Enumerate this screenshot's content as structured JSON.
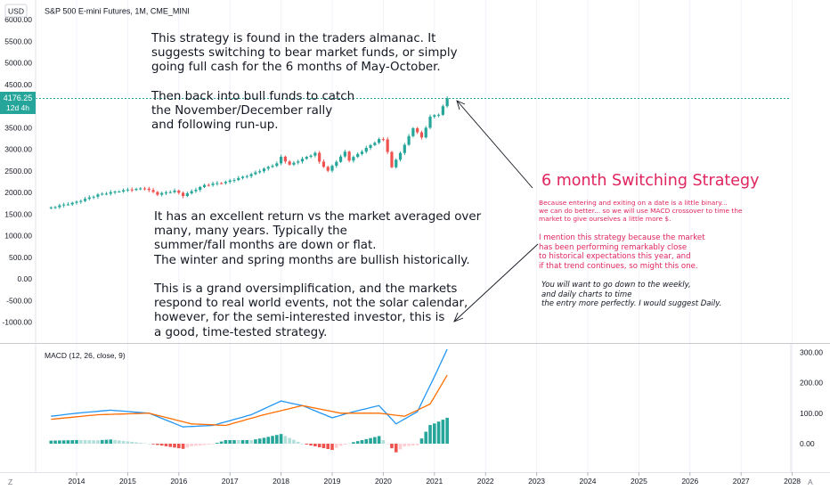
{
  "header": {
    "currency": "USD",
    "symbol_line": "S&P 500 E-mini Futures, 1M, CME_MINI"
  },
  "colors": {
    "up": "#26a69a",
    "down": "#ef5350",
    "hist_up_strong": "#26a69a",
    "hist_up_weak": "#b2dfdb",
    "hist_down_strong": "#ef5350",
    "hist_down_weak": "#ffcdd2",
    "macd_line": "#2196f3",
    "signal_line": "#ff6d00",
    "annotation_pink": "#e0245e"
  },
  "price_axis": {
    "labels": [
      "6000.00",
      "5500.00",
      "5000.00",
      "4500.00",
      "3500.00",
      "3000.00",
      "2500.00",
      "2000.00",
      "1500.00",
      "1000.00",
      "500.00",
      "0.00",
      "-500.00",
      "-1000.00"
    ],
    "current_price": "4176.25",
    "countdown": "12d 4h"
  },
  "time_axis": {
    "labels": [
      "2014",
      "2015",
      "2016",
      "2017",
      "2018",
      "2019",
      "2020",
      "2021",
      "2022",
      "2023",
      "2024",
      "2025",
      "2026",
      "2027",
      "2028"
    ]
  },
  "macd_panel": {
    "label": "MACD (12, 26, close, 9)",
    "axis_labels": [
      "300.00",
      "200.00",
      "100.00",
      "0.00"
    ]
  },
  "annotations": {
    "top_note": "This strategy is found in the traders almanac. It\nsuggests switching to bear market funds, or simply\ngoing full cash for the 6 months of May-October.\n\nThen back into bull funds to catch\nthe November/December rally\nand following run-up.",
    "mid_note": "It has an excellent return vs the market averaged over\nmany, many years. Typically the\nsummer/fall months are down or flat.\nThe winter and spring months are bullish historically.\n\nThis is a grand oversimplification, and the markets\nrespond to real world events, not the solar calendar,\nhowever, for the semi-interested investor, this is\na good, time-tested strategy.",
    "title": "6 month Switching Strategy",
    "pink_small_1": "Because entering and exiting on a date is a little binary...\nwe can do better... so we will use MACD crossover to time the\nmarket to give ourselves a little more $.",
    "pink_small_2": "I mention this strategy because the market\nhas been performing remarkably close\nto historical expectations this year, and\nif that trend continues, so might this one.",
    "italic_note": "You will want to go down to the weekly,\nand daily charts to time\nthe entry more perfectly. I would suggest Daily."
  },
  "footer": {
    "left_glyph": "Z",
    "right_glyph": "A"
  },
  "chart_data": {
    "type": "candlestick",
    "title": "S&P 500 E-mini Futures, 1M, CME_MINI",
    "interval": "1M",
    "ylim": [
      -1300,
      6300
    ],
    "ylabel": "USD",
    "xlim": [
      "2013-07",
      "2028-01"
    ],
    "last_price": 4176.25,
    "monthly_close_anchors": [
      {
        "date": "2013-07",
        "close": 1650
      },
      {
        "date": "2014-01",
        "close": 1780
      },
      {
        "date": "2014-06",
        "close": 1950
      },
      {
        "date": "2014-12",
        "close": 2050
      },
      {
        "date": "2015-05",
        "close": 2100
      },
      {
        "date": "2015-08",
        "close": 1960
      },
      {
        "date": "2015-12",
        "close": 2040
      },
      {
        "date": "2016-02",
        "close": 1930
      },
      {
        "date": "2016-07",
        "close": 2170
      },
      {
        "date": "2016-12",
        "close": 2240
      },
      {
        "date": "2017-06",
        "close": 2420
      },
      {
        "date": "2017-12",
        "close": 2670
      },
      {
        "date": "2018-01",
        "close": 2820
      },
      {
        "date": "2018-03",
        "close": 2640
      },
      {
        "date": "2018-09",
        "close": 2910
      },
      {
        "date": "2018-10",
        "close": 2710
      },
      {
        "date": "2018-12",
        "close": 2500
      },
      {
        "date": "2019-04",
        "close": 2940
      },
      {
        "date": "2019-05",
        "close": 2750
      },
      {
        "date": "2019-12",
        "close": 3230
      },
      {
        "date": "2020-01",
        "close": 3220
      },
      {
        "date": "2020-02",
        "close": 2950
      },
      {
        "date": "2020-03",
        "close": 2580
      },
      {
        "date": "2020-06",
        "close": 3100
      },
      {
        "date": "2020-08",
        "close": 3500
      },
      {
        "date": "2020-10",
        "close": 3270
      },
      {
        "date": "2020-12",
        "close": 3750
      },
      {
        "date": "2021-02",
        "close": 3810
      },
      {
        "date": "2021-04",
        "close": 4176
      }
    ],
    "macd": {
      "params": "12, 26, close, 9",
      "ylim": [
        -60,
        310
      ],
      "macd_anchors": [
        {
          "date": "2013-07",
          "value": 90
        },
        {
          "date": "2014-01",
          "value": 100
        },
        {
          "date": "2014-09",
          "value": 110
        },
        {
          "date": "2015-06",
          "value": 100
        },
        {
          "date": "2016-02",
          "value": 55
        },
        {
          "date": "2016-09",
          "value": 60
        },
        {
          "date": "2017-06",
          "value": 95
        },
        {
          "date": "2018-01",
          "value": 140
        },
        {
          "date": "2018-06",
          "value": 125
        },
        {
          "date": "2019-01",
          "value": 85
        },
        {
          "date": "2019-06",
          "value": 105
        },
        {
          "date": "2019-12",
          "value": 125
        },
        {
          "date": "2020-04",
          "value": 65
        },
        {
          "date": "2020-09",
          "value": 105
        },
        {
          "date": "2021-01",
          "value": 220
        },
        {
          "date": "2021-04",
          "value": 310
        }
      ],
      "signal_anchors": [
        {
          "date": "2013-07",
          "value": 80
        },
        {
          "date": "2014-06",
          "value": 95
        },
        {
          "date": "2015-06",
          "value": 100
        },
        {
          "date": "2016-04",
          "value": 65
        },
        {
          "date": "2016-12",
          "value": 60
        },
        {
          "date": "2017-09",
          "value": 95
        },
        {
          "date": "2018-06",
          "value": 125
        },
        {
          "date": "2019-03",
          "value": 100
        },
        {
          "date": "2019-12",
          "value": 100
        },
        {
          "date": "2020-06",
          "value": 90
        },
        {
          "date": "2020-12",
          "value": 130
        },
        {
          "date": "2021-04",
          "value": 225
        }
      ]
    }
  }
}
